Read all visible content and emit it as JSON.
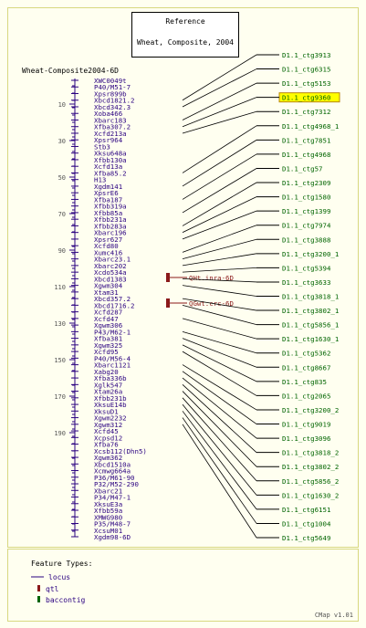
{
  "reference": {
    "title": "Reference",
    "subtitle": "Wheat, Composite, 2004"
  },
  "map_title": "Wheat-Composite2004-6D",
  "scale_ticks": [
    "10",
    "30",
    "50",
    "70",
    "90",
    "110",
    "130",
    "150",
    "170",
    "190"
  ],
  "loci": [
    "XWC0049t",
    "P40/M51-7",
    "Xpsr899b",
    "Xbcd1821.2",
    "Xbcd342.3",
    "Xoba466",
    "Xbarc183",
    "Xfba307.2",
    "Xcfd213a",
    "Xpsr964",
    "Stb3",
    "Xksu648a",
    "Xfbb130a",
    "Xcfd13a",
    "Xfba85.2",
    "H13",
    "Xgdm141",
    "XpsrE6",
    "Xfba187",
    "Xfbb319a",
    "Xfbb85a",
    "Xfbb231a",
    "Xfbb283a",
    "Xbarc196",
    "Xpsr627",
    "Xcfd80",
    "Xumc416",
    "Xbarc23.1",
    "Xbarc202",
    "Xcdo534a",
    "Xbcd1383",
    "Xgwm304",
    "Xtam31",
    "Xbcd357.2",
    "Xbcd1716.2",
    "Xcfd287",
    "Xcfd47",
    "Xgwm306",
    "P43/M62-1",
    "Xfba381",
    "Xgwm325",
    "Xcfd95",
    "P40/M56-4",
    "Xbarc1121",
    "Xabg20",
    "Xfba336b",
    "Xglk547",
    "Xtam26a",
    "Xfbb231b",
    "XksuE14b",
    "XksuD1",
    "Xgwm2232",
    "Xgwm312",
    "Xcfd45",
    "Xcpsd12",
    "Xfba76",
    "Xcsb112(Dhn5)",
    "Xgwm362",
    "Xbcd1510a",
    "Xcmwg664a",
    "P36/M61-90",
    "P32/M52-290",
    "Xbarc21",
    "P34/M47-1",
    "XksuE3a",
    "Xfbb59a",
    "XMWG980",
    "P35/M48-7",
    "XcsuM01",
    "Xgdm98-6D"
  ],
  "qtls": [
    "QHt.inra-6D",
    "QGwt.crc-6D"
  ],
  "contigs": [
    "D1.1_ctg3913",
    "D1.1_ctg6315",
    "D1.1_ctg5153",
    "D1.1_ctg9360",
    "D1.1_ctg7312",
    "D1.1_ctg4968_1",
    "D1.1_ctg7851",
    "D1.1_ctg4968",
    "D1.1_ctg57",
    "D1.1_ctg2309",
    "D1.1_ctg1580",
    "D1.1_ctg1399",
    "D1.1_ctg7974",
    "D1.1_ctg3888",
    "D1.1_ctg3200_1",
    "D1.1_ctg5394",
    "D1.1_ctg3633",
    "D1.1_ctg3818_1",
    "D1.1_ctg3802_1",
    "D1.1_ctg5856_1",
    "D1.1_ctg1630_1",
    "D1.1_ctg5362",
    "D1.1_ctg8667",
    "D1.1_ctg835",
    "D1.1_ctg2065",
    "D1.1_ctg3200_2",
    "D1.1_ctg9019",
    "D1.1_ctg3096",
    "D1.1_ctg3818_2",
    "D1.1_ctg3802_2",
    "D1.1_ctg5856_2",
    "D1.1_ctg1630_2",
    "D1.1_ctg6151",
    "D1.1_ctg1004",
    "D1.1_ctg5649"
  ],
  "highlighted_contig": "D1.1_ctg9360",
  "legend": {
    "title": "Feature Types:",
    "locus": "locus",
    "qtl": "qtl",
    "baccontig": "baccontig"
  },
  "colors": {
    "locus": "#2a0080",
    "qtl": "#8b1a1a",
    "contig": "#006400",
    "highlight": "#ffff00"
  },
  "version": "CMap v1.01"
}
